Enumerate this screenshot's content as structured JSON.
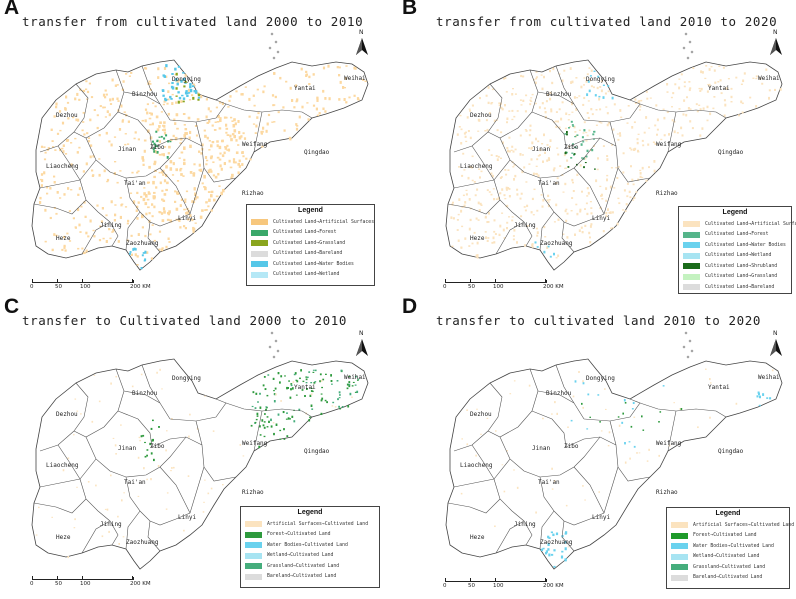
{
  "colors": {
    "artificial": "#fcd8a0",
    "artificial_light": "#fbe3bf",
    "forest_a": "#3aa86a",
    "grassland_a": "#8aa51e",
    "bareland": "#dcdcdc",
    "water_a": "#56c7e8",
    "wetland_a": "#b5e8f6",
    "water_b": "#6ad2ee",
    "wetland_b": "#a7e4f2",
    "shrub_b": "#1a6b1a",
    "grass_b": "#c4f2c0",
    "forest_c": "#2e9a3d",
    "grass_c": "#45ad7c",
    "forest_b": "#55b58a"
  },
  "icons": {
    "north_arrow": "north-arrow-icon"
  },
  "cities": [
    "Dongying",
    "Weihai",
    "Binzhou",
    "Yantai",
    "Dezhou",
    "Qingdao",
    "Weifang",
    "Jinan",
    "Zibo",
    "Liaocheng",
    "Tai'an",
    "Rizhao",
    "Linyi",
    "Jining",
    "Heze",
    "Zaozhuang"
  ],
  "panels": [
    {
      "letter": "A",
      "title": "transfer from cultivated land 2000 to 2010",
      "north_label": "N",
      "legend": {
        "title": "Legend",
        "items": [
          {
            "label": "Cultivated Land→Artificial Surfaces",
            "color": "#f7c77d"
          },
          {
            "label": "Cultivated Land→Forest",
            "color": "#3aa86a"
          },
          {
            "label": "Cultivated Land→Grassland",
            "color": "#8aa51e"
          },
          {
            "label": "Cultivated Land→Bareland",
            "color": "#dcdcdc"
          },
          {
            "label": "Cultivated Land→Water Bodies",
            "color": "#56c7e8"
          },
          {
            "label": "Cultivated Land→Wetland",
            "color": "#b5e8f6"
          }
        ]
      },
      "scale": {
        "labels": [
          "0",
          "50",
          "100",
          "200 KM"
        ],
        "values_km": [
          0,
          50,
          100,
          200
        ]
      }
    },
    {
      "letter": "B",
      "title": "transfer from cultivated land 2010 to 2020",
      "north_label": "N",
      "legend": {
        "title": "Legend",
        "items": [
          {
            "label": "Cultivated Land→Artificial Surfaces",
            "color": "#fbe3bf"
          },
          {
            "label": "Cultivated Land→Forest",
            "color": "#55b58a"
          },
          {
            "label": "Cultivated Land→Water Bodies",
            "color": "#6ad2ee"
          },
          {
            "label": "Cultivated Land→Wetland",
            "color": "#a7e4f2"
          },
          {
            "label": "Cultivated Land→Shrubland",
            "color": "#1a6b1a"
          },
          {
            "label": "Cultivated Land→Grassland",
            "color": "#c4f2c0"
          },
          {
            "label": "Cultivated Land→Bareland",
            "color": "#dcdcdc"
          }
        ]
      },
      "scale": {
        "labels": [
          "0",
          "50",
          "100",
          "200 KM"
        ],
        "values_km": [
          0,
          50,
          100,
          200
        ]
      }
    },
    {
      "letter": "C",
      "title": "transfer to Cultivated land 2000 to 2010",
      "north_label": "N",
      "legend": {
        "title": "Legend",
        "items": [
          {
            "label": "Artificial Surfaces→Cultivated Land",
            "color": "#fbe3bf"
          },
          {
            "label": "Forest→Cultivated Land",
            "color": "#2e9a3d"
          },
          {
            "label": "Water Bodies→Cultivated Land",
            "color": "#6ad2ee"
          },
          {
            "label": "Wetland→Cultivated Land",
            "color": "#a7e4f2"
          },
          {
            "label": "Grassland→Cultivated Land",
            "color": "#45ad7c"
          },
          {
            "label": "Bareland→Cultivated Land",
            "color": "#dcdcdc"
          }
        ]
      },
      "scale": {
        "labels": [
          "0",
          "50",
          "100",
          "200 KM"
        ],
        "values_km": [
          0,
          50,
          100,
          200
        ]
      }
    },
    {
      "letter": "D",
      "title": "transfer to cultivated land 2010 to 2020",
      "north_label": "N",
      "legend": {
        "title": "Legend",
        "items": [
          {
            "label": "Artificial Surfaces→Cultivated Land",
            "color": "#fbe3bf"
          },
          {
            "label": "Forest→Cultivated Land",
            "color": "#1e9a2a"
          },
          {
            "label": "Water Bodies→Cultivated Land",
            "color": "#6ad2ee"
          },
          {
            "label": "Wetland→Cultivated Land",
            "color": "#a7e4f2"
          },
          {
            "label": "Grassland→Cultivated Land",
            "color": "#45ad7c"
          },
          {
            "label": "Bareland→Cultivated Land",
            "color": "#dcdcdc"
          }
        ]
      },
      "scale": {
        "labels": [
          "0",
          "50",
          "100",
          "200 KM"
        ],
        "values_km": [
          0,
          50,
          100,
          200
        ]
      }
    }
  ]
}
